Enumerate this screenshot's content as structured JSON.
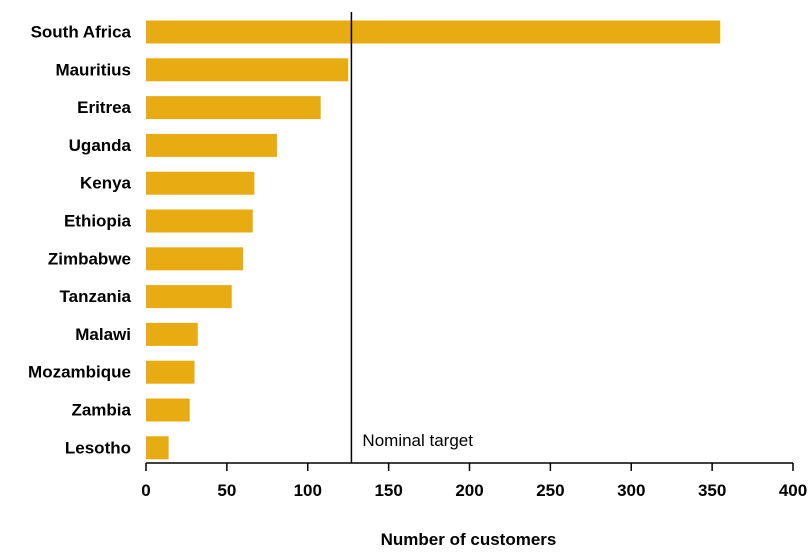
{
  "chart_data": {
    "type": "bar",
    "orientation": "horizontal",
    "categories": [
      "South Africa",
      "Mauritius",
      "Eritrea",
      "Uganda",
      "Kenya",
      "Ethiopia",
      "Zimbabwe",
      "Tanzania",
      "Malawi",
      "Mozambique",
      "Zambia",
      "Lesotho"
    ],
    "values": [
      355,
      125,
      108,
      81,
      67,
      66,
      60,
      53,
      32,
      30,
      27,
      14
    ],
    "xlabel": "Number of customers",
    "ylabel": "",
    "xlim": [
      0,
      400
    ],
    "xticks": [
      0,
      50,
      100,
      150,
      200,
      250,
      300,
      350,
      400
    ],
    "bar_color": "#E8AC12",
    "grid": false,
    "reference_line": {
      "value": 127,
      "label": "Nominal target",
      "color": "#000000"
    }
  }
}
